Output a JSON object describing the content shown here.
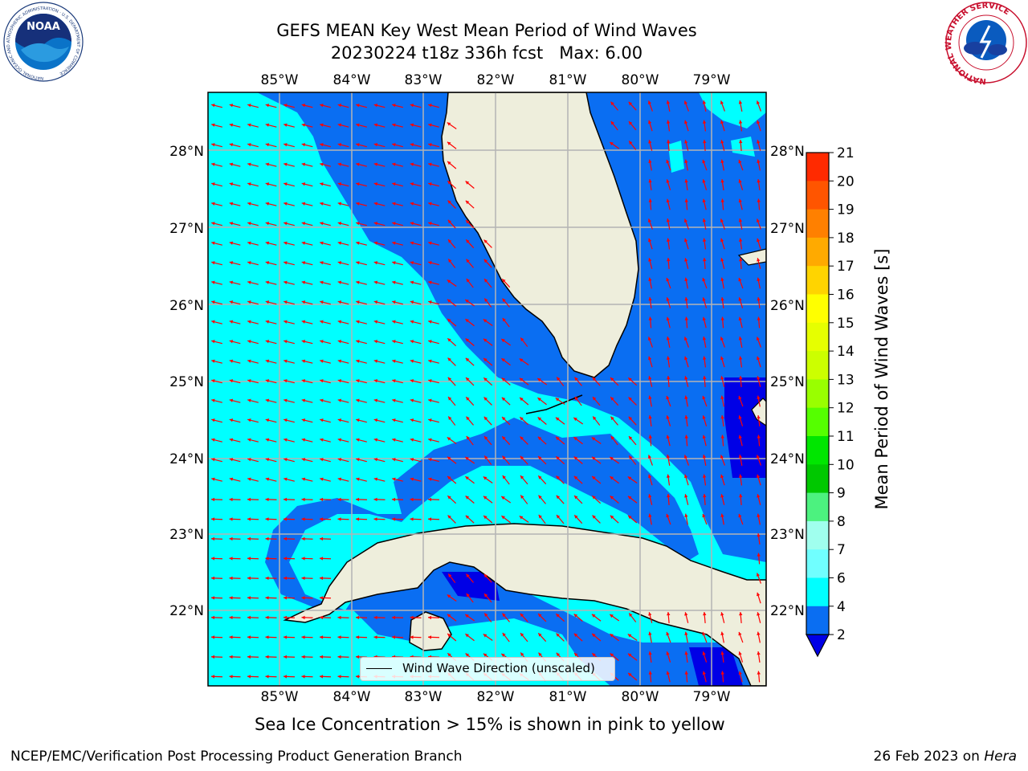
{
  "title": {
    "line1": "GEFS MEAN Key West Mean Period of Wind Waves",
    "line2": "20230224 t18z 336h fcst   Max: 6.00"
  },
  "map": {
    "lon_labels": [
      "85°W",
      "84°W",
      "83°W",
      "82°W",
      "81°W",
      "80°W",
      "79°W"
    ],
    "lat_labels": [
      "28°N",
      "27°N",
      "26°N",
      "25°N",
      "24°N",
      "23°N",
      "22°N"
    ],
    "legend_label": "Wind Wave Direction (unscaled)",
    "colors": {
      "ocean_2_4": "#0a6ef2",
      "ocean_4_6": "#00ffff",
      "ocean_lt2": "#0000e6",
      "land": "#eeeedc",
      "arrow": "#ff0000",
      "grid": "#b4b4b4"
    }
  },
  "colorbar": {
    "label": "Mean Period of Wind Waves [s]",
    "ticks": [
      "21",
      "20",
      "19",
      "18",
      "17",
      "16",
      "15",
      "14",
      "13",
      "12",
      "11",
      "10",
      "9",
      "8",
      "7",
      "6",
      "4",
      "2"
    ],
    "colors": [
      "#ff0000",
      "#ff2a00",
      "#ff5500",
      "#ff8000",
      "#ffaa00",
      "#ffd400",
      "#ffff00",
      "#e6ff00",
      "#ccff00",
      "#99ff00",
      "#55ff00",
      "#00e600",
      "#00c800",
      "#4cf27f",
      "#a0ffee",
      "#70ffff",
      "#00ffff",
      "#0a6ef2"
    ],
    "extend_color": "#0000e6"
  },
  "footer": {
    "ice_note": "Sea Ice Concentration > 15% is shown in pink to yellow",
    "left": "NCEP/EMC/Verification Post Processing Product Generation Branch",
    "right_date": "26 Feb 2023 on ",
    "right_host": "Hera"
  },
  "logos": {
    "noaa": "NOAA",
    "noaa_ring": "NATIONAL OCEANIC AND ATMOSPHERIC ADMINISTRATION · U.S. DEPARTMENT OF COMMERCE",
    "nws_ring": "NATIONAL WEATHER SERVICE"
  }
}
